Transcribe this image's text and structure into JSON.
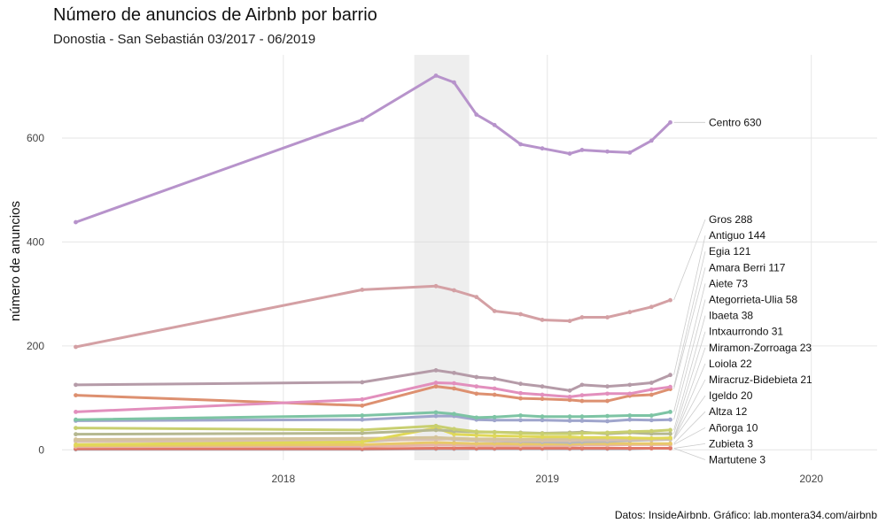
{
  "header": {
    "title": "Número de anuncios de Airbnb por barrio",
    "subtitle": "Donostia - San Sebastián 03/2017 - 06/2019"
  },
  "caption": "Datos: InsideAirbnb. Gráfico: lab.montera34.com/airbnb",
  "chart_data": {
    "type": "line",
    "xlabel": "",
    "ylabel": "número de anuncios",
    "xlim": [
      "2017-03-01",
      "2020-04-01"
    ],
    "ylim": [
      -20,
      760
    ],
    "x_ticks": [
      "2018-01-01",
      "2019-01-01",
      "2020-01-01"
    ],
    "x_tick_labels": [
      "2018",
      "2019",
      "2020"
    ],
    "y_ticks": [
      0,
      200,
      400,
      600
    ],
    "highlight_band": [
      "2018-07-01",
      "2018-09-15"
    ],
    "grid": true,
    "x": [
      "2017-03-20",
      "2018-04-20",
      "2018-07-31",
      "2018-08-25",
      "2018-09-25",
      "2018-10-20",
      "2018-11-25",
      "2018-12-25",
      "2019-02-01",
      "2019-02-18",
      "2019-03-25",
      "2019-04-25",
      "2019-05-25",
      "2019-06-20"
    ],
    "series": [
      {
        "name": "Centro",
        "label": "Centro 630",
        "color": "#b793cb",
        "values": [
          438,
          635,
          720,
          707,
          645,
          625,
          588,
          580,
          570,
          577,
          574,
          572,
          595,
          630
        ]
      },
      {
        "name": "Gros",
        "label": "Gros 288",
        "color": "#d4a0a4",
        "values": [
          198,
          308,
          315,
          307,
          294,
          267,
          261,
          250,
          248,
          255,
          255,
          265,
          275,
          288
        ]
      },
      {
        "name": "Antiguo",
        "label": "Antiguo 144",
        "color": "#b59ba8",
        "values": [
          125,
          130,
          153,
          148,
          140,
          137,
          127,
          122,
          114,
          125,
          122,
          125,
          129,
          144
        ]
      },
      {
        "name": "Egia",
        "label": "Egia 121",
        "color": "#e28fbd",
        "values": [
          73,
          97,
          129,
          128,
          122,
          118,
          109,
          106,
          102,
          105,
          108,
          108,
          116,
          121
        ]
      },
      {
        "name": "Amara Berri",
        "label": "Amara Berri 117",
        "color": "#dd9070",
        "values": [
          105,
          85,
          122,
          118,
          108,
          106,
          99,
          98,
          96,
          94,
          94,
          104,
          106,
          117
        ]
      },
      {
        "name": "Aiete",
        "label": "Aiete  73",
        "color": "#7dc4a4",
        "values": [
          58,
          66,
          72,
          69,
          62,
          63,
          66,
          64,
          64,
          64,
          65,
          66,
          66,
          73
        ]
      },
      {
        "name": "Ategorrieta-Ulia",
        "label": "Ategorrieta-Ulia  58",
        "color": "#9fa5cc",
        "values": [
          56,
          58,
          65,
          65,
          58,
          57,
          57,
          57,
          56,
          56,
          55,
          58,
          57,
          58
        ]
      },
      {
        "name": "Ibaeta",
        "label": "Ibaeta  38",
        "color": "#c8cf70",
        "values": [
          42,
          38,
          46,
          40,
          35,
          34,
          32,
          31,
          31,
          32,
          33,
          35,
          36,
          38
        ]
      },
      {
        "name": "Intxaurrondo",
        "label": "Intxaurrondo  31",
        "color": "#b5b890",
        "values": [
          30,
          32,
          38,
          36,
          34,
          34,
          33,
          32,
          33,
          34,
          31,
          33,
          31,
          31
        ]
      },
      {
        "name": "Miramon-Zorroaga",
        "label": "Miramon-Zorroaga  23",
        "color": "#e0d858",
        "values": [
          10,
          15,
          42,
          30,
          28,
          27,
          26,
          25,
          25,
          24,
          24,
          23,
          22,
          23
        ]
      },
      {
        "name": "Loiola",
        "label": "Loiola  22",
        "color": "#d4c39a",
        "values": [
          20,
          22,
          24,
          22,
          21,
          21,
          20,
          20,
          21,
          21,
          22,
          22,
          22,
          22
        ]
      },
      {
        "name": "Miracruz-Bidebieta",
        "label": "Miracruz-Bidebieta  21",
        "color": "#d8c0b0",
        "values": [
          16,
          18,
          20,
          21,
          19,
          18,
          18,
          18,
          18,
          19,
          19,
          20,
          20,
          21
        ]
      },
      {
        "name": "Igeldo",
        "label": "Igeldo  20",
        "color": "#b8b8b8",
        "values": [
          18,
          16,
          22,
          20,
          18,
          17,
          16,
          15,
          14,
          15,
          16,
          18,
          19,
          20
        ]
      },
      {
        "name": "Altza",
        "label": "Altza  12",
        "color": "#e8c86a",
        "values": [
          8,
          10,
          14,
          13,
          12,
          12,
          11,
          11,
          11,
          12,
          12,
          12,
          12,
          12
        ]
      },
      {
        "name": "Añorga",
        "label": "Añorga  10",
        "color": "#e6b4a8",
        "values": [
          6,
          7,
          9,
          9,
          8,
          8,
          8,
          8,
          8,
          9,
          9,
          10,
          10,
          10
        ]
      },
      {
        "name": "Zubieta",
        "label": "Zubieta   3",
        "color": "#e07868",
        "values": [
          2,
          2,
          3,
          3,
          3,
          3,
          3,
          3,
          3,
          3,
          3,
          3,
          3,
          3
        ]
      },
      {
        "name": "Martutene",
        "label": "Martutene   3",
        "color": "#a0a0b0",
        "values": [
          1,
          1,
          2,
          2,
          2,
          2,
          2,
          2,
          2,
          2,
          2,
          2,
          3,
          3
        ]
      }
    ]
  }
}
